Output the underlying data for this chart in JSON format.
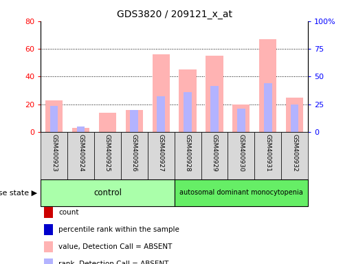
{
  "title": "GDS3820 / 209121_x_at",
  "samples": [
    "GSM400923",
    "GSM400924",
    "GSM400925",
    "GSM400926",
    "GSM400927",
    "GSM400928",
    "GSM400929",
    "GSM400930",
    "GSM400931",
    "GSM400932"
  ],
  "value_absent": [
    23,
    3,
    14,
    16,
    56,
    45,
    55,
    20,
    67,
    25
  ],
  "rank_absent": [
    19,
    4,
    0,
    16,
    26,
    29,
    33,
    17,
    35,
    20
  ],
  "control_samples": 5,
  "disease_samples": 5,
  "control_label": "control",
  "disease_label": "autosomal dominant monocytopenia",
  "disease_state_label": "disease state",
  "left_ylim": [
    0,
    80
  ],
  "right_ylim": [
    0,
    100
  ],
  "left_yticks": [
    0,
    20,
    40,
    60,
    80
  ],
  "right_yticks": [
    0,
    25,
    50,
    75,
    100
  ],
  "right_yticklabels": [
    "0",
    "25",
    "50",
    "75",
    "100%"
  ],
  "color_value_absent": "#ffb3b3",
  "color_rank_absent": "#b3b3ff",
  "color_count": "#cc0000",
  "color_rank": "#000099",
  "color_control_bg": "#aaffaa",
  "color_disease_bg": "#66ee66",
  "color_sample_box": "#d8d8d8",
  "legend_items": [
    {
      "label": "count",
      "color": "#cc0000"
    },
    {
      "label": "percentile rank within the sample",
      "color": "#0000cc"
    },
    {
      "label": "value, Detection Call = ABSENT",
      "color": "#ffb3b3"
    },
    {
      "label": "rank, Detection Call = ABSENT",
      "color": "#b3b3ff"
    }
  ]
}
